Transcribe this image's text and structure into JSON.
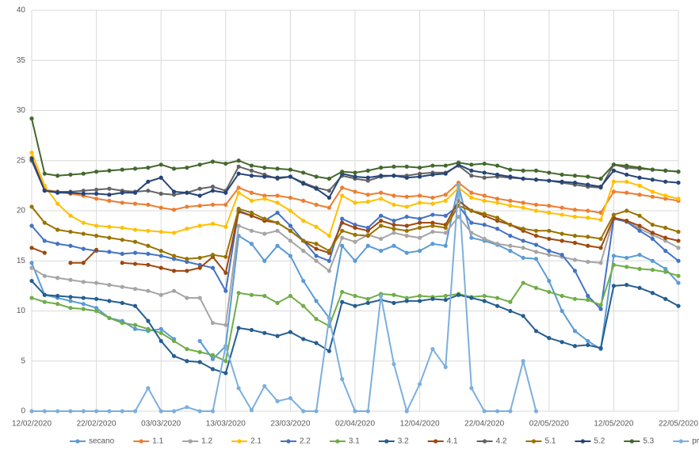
{
  "chart_data": {
    "type": "line",
    "x": [
      0,
      2,
      4,
      6,
      8,
      10,
      12,
      14,
      16,
      18,
      20,
      22,
      24,
      26,
      28,
      30,
      32,
      34,
      36,
      38,
      40,
      42,
      44,
      46,
      48,
      50,
      52,
      54,
      56,
      58,
      60,
      62,
      64,
      66,
      68,
      70,
      72,
      74,
      76,
      78,
      80,
      82,
      84,
      86,
      88,
      90,
      92,
      94,
      96,
      98,
      100
    ],
    "xlim": [
      0,
      100
    ],
    "xticks": [
      {
        "value": 0,
        "label": "12/02/2020"
      },
      {
        "value": 10,
        "label": "22/02/2020"
      },
      {
        "value": 20,
        "label": "03/03/2020"
      },
      {
        "value": 30,
        "label": "13/03/2020"
      },
      {
        "value": 40,
        "label": "23/03/2020"
      },
      {
        "value": 50,
        "label": "02/04/2020"
      },
      {
        "value": 60,
        "label": "12/04/2020"
      },
      {
        "value": 70,
        "label": "22/04/2020"
      },
      {
        "value": 80,
        "label": "02/05/2020"
      },
      {
        "value": 90,
        "label": "12/05/2020"
      },
      {
        "value": 100,
        "label": "22/05/2020"
      }
    ],
    "ylim": [
      0,
      40
    ],
    "yticks": [
      0,
      5,
      10,
      15,
      20,
      25,
      30,
      35,
      40
    ],
    "grid": true,
    "legend": "bottom",
    "series": [
      {
        "name": "secano",
        "color": "#5b9bd5",
        "values": [
          14.8,
          11.6,
          11.3,
          11.0,
          10.7,
          10.3,
          9.3,
          9.0,
          8.2,
          8.0,
          8.2,
          7.2,
          null,
          7.0,
          5.2,
          6.5,
          17.5,
          16.7,
          15.0,
          16.5,
          15.5,
          13.0,
          11.0,
          9.3,
          16.5,
          15.0,
          16.5,
          16.0,
          16.5,
          15.8,
          16.0,
          16.7,
          16.5,
          22.5,
          17.3,
          17.0,
          16.6,
          16.0,
          15.3,
          15.2,
          13.0,
          10.0,
          8.0,
          7.0,
          6.2,
          15.5,
          15.3,
          15.6,
          15.0,
          14.2,
          12.8
        ]
      },
      {
        "name": "1.1",
        "color": "#ed7d31",
        "values": [
          25.3,
          22.1,
          21.9,
          21.7,
          21.5,
          21.2,
          21.0,
          20.8,
          20.7,
          20.6,
          20.3,
          20.1,
          20.4,
          20.5,
          20.6,
          20.6,
          22.3,
          21.8,
          21.5,
          21.5,
          21.3,
          21.0,
          20.6,
          20.3,
          22.3,
          21.9,
          21.6,
          21.8,
          21.5,
          21.4,
          21.5,
          21.3,
          21.6,
          22.8,
          21.8,
          21.5,
          21.2,
          21.0,
          20.8,
          20.6,
          20.5,
          20.3,
          20.1,
          20.0,
          19.8,
          21.9,
          21.8,
          21.6,
          21.4,
          21.2,
          21.0
        ]
      },
      {
        "name": "1.2",
        "color": "#a5a5a5",
        "values": [
          14.3,
          13.5,
          13.3,
          13.1,
          12.9,
          12.8,
          12.6,
          12.4,
          12.2,
          12.0,
          11.6,
          12.0,
          11.3,
          11.3,
          8.8,
          8.6,
          18.5,
          18.0,
          17.7,
          18.0,
          17.0,
          16.0,
          15.0,
          14.0,
          17.3,
          16.9,
          17.6,
          17.2,
          17.8,
          17.5,
          17.3,
          17.9,
          17.8,
          19.4,
          17.8,
          17.2,
          16.7,
          16.5,
          16.3,
          15.9,
          15.6,
          15.4,
          15.1,
          14.9,
          14.8,
          19.3,
          19.0,
          18.2,
          17.6,
          17.0,
          16.3
        ]
      },
      {
        "name": "2.1",
        "color": "#ffc000",
        "values": [
          25.8,
          22.5,
          20.7,
          19.5,
          18.8,
          18.5,
          18.4,
          18.3,
          18.1,
          18.0,
          17.9,
          17.8,
          18.2,
          18.5,
          18.7,
          18.4,
          21.8,
          21.0,
          21.2,
          20.8,
          20.0,
          19.0,
          18.4,
          17.5,
          21.5,
          20.8,
          20.9,
          21.2,
          20.6,
          20.4,
          20.8,
          20.7,
          21.0,
          22.3,
          21.3,
          21.0,
          20.8,
          20.5,
          20.3,
          20.0,
          19.8,
          19.6,
          19.4,
          19.3,
          19.1,
          22.9,
          22.9,
          22.5,
          21.9,
          21.5,
          21.2
        ]
      },
      {
        "name": "2.2",
        "color": "#4472c4",
        "values": [
          18.5,
          17.0,
          16.7,
          16.5,
          16.2,
          16.0,
          15.9,
          15.7,
          15.8,
          15.7,
          15.5,
          15.2,
          14.9,
          14.6,
          14.3,
          12.0,
          20.0,
          19.5,
          19.0,
          19.8,
          18.5,
          17.0,
          15.5,
          15.0,
          19.2,
          18.6,
          18.3,
          19.5,
          19.0,
          19.4,
          19.2,
          19.6,
          19.5,
          20.5,
          18.8,
          18.6,
          18.2,
          17.5,
          17.0,
          16.6,
          16.0,
          15.6,
          14.0,
          11.5,
          10.2,
          19.2,
          18.9,
          18.0,
          17.2,
          16.0,
          15.0
        ]
      },
      {
        "name": "3.1",
        "color": "#70ad47",
        "values": [
          11.3,
          10.9,
          10.7,
          10.3,
          10.2,
          10.0,
          9.3,
          8.8,
          8.6,
          8.2,
          7.8,
          7.0,
          6.2,
          5.9,
          5.6,
          5.0,
          11.8,
          11.6,
          11.5,
          10.8,
          11.5,
          10.5,
          9.2,
          8.5,
          11.9,
          11.5,
          11.2,
          11.7,
          11.6,
          11.3,
          11.5,
          11.4,
          11.5,
          11.7,
          11.4,
          11.5,
          11.3,
          10.9,
          12.8,
          12.3,
          11.9,
          11.5,
          11.2,
          11.1,
          10.6,
          14.6,
          14.4,
          14.2,
          14.1,
          13.9,
          13.5
        ]
      },
      {
        "name": "3.2",
        "color": "#255e91",
        "values": [
          13.0,
          11.6,
          11.5,
          11.4,
          11.3,
          11.2,
          11.0,
          10.8,
          10.5,
          9.0,
          7.0,
          5.5,
          5.0,
          4.9,
          4.2,
          3.8,
          8.3,
          8.1,
          7.8,
          7.5,
          7.9,
          7.2,
          6.8,
          6.0,
          10.9,
          10.5,
          10.8,
          11.1,
          10.8,
          11.0,
          11.0,
          11.2,
          11.1,
          11.6,
          11.3,
          11.0,
          10.5,
          10.0,
          9.5,
          8.0,
          7.3,
          6.9,
          6.5,
          6.6,
          6.3,
          12.5,
          12.6,
          12.3,
          11.8,
          11.2,
          10.5
        ]
      },
      {
        "name": "4.1",
        "color": "#9e480e",
        "values": [
          16.3,
          15.8,
          null,
          14.8,
          14.8,
          16.1,
          null,
          14.8,
          14.7,
          14.6,
          14.3,
          14.0,
          14.0,
          14.3,
          15.4,
          13.8,
          19.9,
          19.5,
          19.0,
          18.8,
          18.0,
          17.0,
          16.2,
          15.8,
          18.8,
          18.3,
          18.0,
          19.0,
          18.6,
          18.5,
          18.8,
          18.8,
          18.6,
          21.0,
          20.0,
          19.5,
          19.0,
          18.6,
          18.0,
          17.5,
          17.2,
          17.0,
          16.8,
          16.5,
          16.3,
          19.3,
          19.0,
          18.5,
          17.8,
          17.3,
          17.0
        ]
      },
      {
        "name": "4.2",
        "color": "#636363",
        "values": [
          25.0,
          22.0,
          21.9,
          21.9,
          22.0,
          22.1,
          22.2,
          22.0,
          21.9,
          22.0,
          21.7,
          21.6,
          21.8,
          22.2,
          22.4,
          22.0,
          24.4,
          24.0,
          23.6,
          23.2,
          23.4,
          22.8,
          22.3,
          22.0,
          23.5,
          23.2,
          23.0,
          23.4,
          23.5,
          23.5,
          23.7,
          23.8,
          23.8,
          24.5,
          23.5,
          23.3,
          23.4,
          23.3,
          23.2,
          23.1,
          23.0,
          22.8,
          22.6,
          22.4,
          22.3,
          24.6,
          24.3,
          24.2,
          24.1,
          24.0,
          23.9
        ]
      },
      {
        "name": "5.1",
        "color": "#997300",
        "values": [
          20.4,
          18.8,
          18.1,
          17.9,
          17.7,
          17.5,
          17.3,
          17.1,
          16.9,
          16.5,
          16.0,
          15.5,
          15.2,
          15.3,
          15.6,
          15.4,
          20.2,
          19.8,
          19.2,
          18.8,
          18.0,
          17.0,
          16.7,
          16.0,
          18.0,
          17.6,
          17.5,
          18.5,
          18.2,
          18.0,
          18.3,
          18.5,
          18.3,
          20.5,
          20.0,
          19.7,
          19.3,
          18.6,
          18.2,
          18.0,
          18.0,
          17.7,
          17.5,
          17.4,
          17.2,
          19.6,
          20.0,
          19.5,
          18.6,
          18.3,
          17.9
        ]
      },
      {
        "name": "5.2",
        "color": "#264478",
        "values": [
          25.2,
          22.0,
          21.8,
          21.8,
          21.7,
          21.7,
          21.6,
          21.8,
          21.8,
          22.9,
          23.3,
          21.9,
          21.8,
          21.5,
          22.0,
          21.8,
          23.7,
          23.5,
          23.4,
          23.3,
          23.4,
          22.7,
          22.2,
          21.3,
          23.7,
          23.4,
          23.3,
          23.5,
          23.5,
          23.3,
          23.4,
          23.6,
          23.7,
          24.6,
          24.0,
          23.8,
          23.6,
          23.4,
          23.2,
          23.1,
          23.0,
          22.9,
          22.8,
          22.6,
          22.4,
          24.0,
          23.6,
          23.3,
          23.1,
          22.9,
          22.8
        ]
      },
      {
        "name": "5.3",
        "color": "#43682b",
        "values": [
          29.2,
          23.7,
          23.5,
          23.6,
          23.7,
          23.9,
          24.0,
          24.1,
          24.2,
          24.3,
          24.6,
          24.2,
          24.3,
          24.6,
          24.9,
          24.7,
          25.0,
          24.5,
          24.3,
          24.2,
          24.1,
          23.8,
          23.4,
          23.2,
          23.9,
          23.8,
          24.0,
          24.3,
          24.4,
          24.4,
          24.3,
          24.5,
          24.5,
          24.8,
          24.6,
          24.7,
          24.5,
          24.1,
          24.0,
          24.0,
          23.8,
          23.6,
          23.5,
          23.4,
          23.2,
          24.6,
          24.5,
          24.3,
          24.1,
          24.0,
          23.9
        ]
      },
      {
        "name": "precipitacion",
        "color": "#7cafdd",
        "values": [
          0,
          0,
          0,
          0,
          0,
          0,
          0,
          0,
          0,
          2.3,
          0,
          0,
          0.4,
          0,
          0,
          6.5,
          2.3,
          0.1,
          2.5,
          1.0,
          1.3,
          0,
          0,
          9.3,
          3.2,
          0,
          0,
          11.5,
          4.7,
          0,
          2.7,
          6.2,
          4.4,
          22.6,
          2.3,
          0,
          0,
          0,
          5.0,
          0,
          null,
          null,
          null,
          null,
          null,
          null,
          null,
          null,
          null,
          null,
          null
        ]
      }
    ]
  }
}
